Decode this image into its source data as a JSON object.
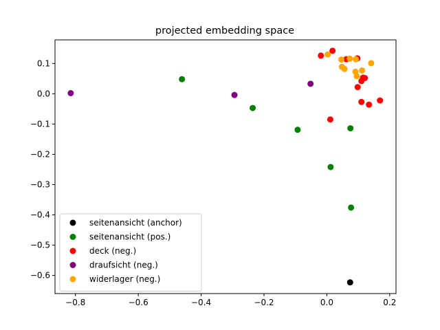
{
  "chart_data": {
    "type": "scatter",
    "title": "projected embedding space",
    "xlabel": "",
    "ylabel": "",
    "xlim": [
      -0.865,
      0.22
    ],
    "ylim": [
      -0.66,
      0.178
    ],
    "xticks": [
      -0.8,
      -0.6,
      -0.4,
      -0.2,
      0.0,
      0.2
    ],
    "xtick_labels": [
      "−0.8",
      "−0.6",
      "−0.4",
      "−0.2",
      "0.0",
      "0.2"
    ],
    "yticks": [
      -0.6,
      -0.5,
      -0.4,
      -0.3,
      -0.2,
      -0.1,
      0.0,
      0.1
    ],
    "ytick_labels": [
      "−0.6",
      "−0.5",
      "−0.4",
      "−0.3",
      "−0.2",
      "−0.1",
      "0.0",
      "0.1"
    ],
    "grid": false,
    "legend_position": "lower-left",
    "series": [
      {
        "name": "seitenansicht (anchor)",
        "color": "#000000",
        "points": [
          [
            0.074,
            -0.623
          ]
        ]
      },
      {
        "name": "seitenansicht (pos.)",
        "color": "#008000",
        "points": [
          [
            -0.461,
            0.048
          ],
          [
            -0.236,
            -0.047
          ],
          [
            -0.093,
            -0.119
          ],
          [
            0.075,
            -0.114
          ],
          [
            0.012,
            -0.242
          ],
          [
            0.077,
            -0.376
          ]
        ]
      },
      {
        "name": "deck (neg.)",
        "color": "#ff0000",
        "points": [
          [
            -0.019,
            0.126
          ],
          [
            0.018,
            0.142
          ],
          [
            0.062,
            0.114
          ],
          [
            0.097,
            0.117
          ],
          [
            0.115,
            0.053
          ],
          [
            0.11,
            0.042
          ],
          [
            0.098,
            0.022
          ],
          [
            0.11,
            -0.027
          ],
          [
            0.134,
            -0.036
          ],
          [
            0.169,
            -0.022
          ],
          [
            0.011,
            -0.085
          ],
          [
            0.121,
            0.052
          ]
        ]
      },
      {
        "name": "draufsicht (neg.)",
        "color": "#800080",
        "points": [
          [
            -0.815,
            0.002
          ],
          [
            -0.294,
            -0.004
          ],
          [
            -0.052,
            0.033
          ]
        ]
      },
      {
        "name": "widerlager (neg.)",
        "color": "#ffa500",
        "points": [
          [
            0.003,
            0.13
          ],
          [
            0.046,
            0.113
          ],
          [
            0.073,
            0.116
          ],
          [
            0.092,
            0.114
          ],
          [
            0.048,
            0.089
          ],
          [
            0.056,
            0.082
          ],
          [
            0.091,
            0.073
          ],
          [
            0.112,
            0.077
          ],
          [
            0.095,
            0.058
          ],
          [
            0.141,
            0.101
          ]
        ]
      }
    ]
  }
}
